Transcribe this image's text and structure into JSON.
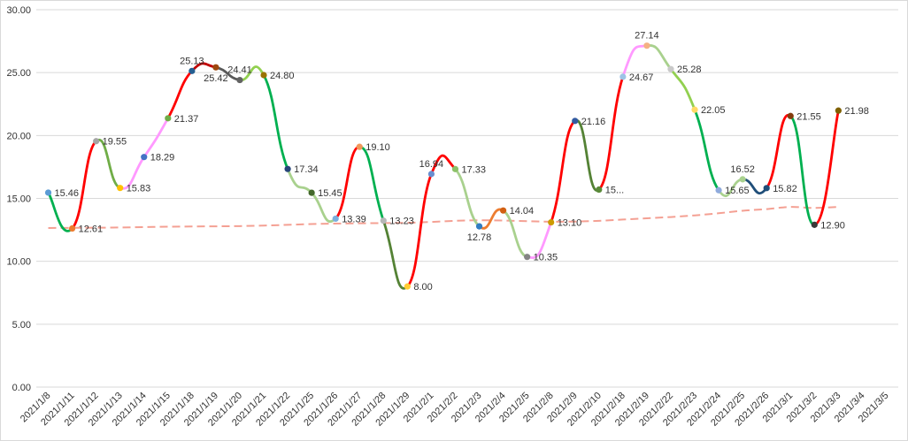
{
  "chart_data": {
    "type": "line",
    "smooth": true,
    "title": "",
    "xlabel": "",
    "ylabel": "",
    "ylim": [
      0,
      30
    ],
    "yticks": [
      "0.00",
      "5.00",
      "10.00",
      "15.00",
      "20.00",
      "25.00",
      "30.00"
    ],
    "grid": "horizontal",
    "legend": "none",
    "categories": [
      "2021/1/8",
      "2021/1/11",
      "2021/1/12",
      "2021/1/13",
      "2021/1/14",
      "2021/1/15",
      "2021/1/18",
      "2021/1/19",
      "2021/1/20",
      "2021/1/21",
      "2021/1/22",
      "2021/1/25",
      "2021/1/26",
      "2021/1/27",
      "2021/1/28",
      "2021/1/29",
      "2021/2/1",
      "2021/2/2",
      "2021/2/3",
      "2021/2/4",
      "2021/2/5",
      "2021/2/8",
      "2021/2/9",
      "2021/2/10",
      "2021/2/18",
      "2021/2/19",
      "2021/2/22",
      "2021/2/23",
      "2021/2/24",
      "2021/2/25",
      "2021/2/26",
      "2021/3/1",
      "2021/3/2",
      "2021/3/3",
      "2021/3/4",
      "2021/3/5"
    ],
    "series": [
      {
        "values": [
          15.46,
          12.61,
          19.55,
          15.83,
          18.29,
          21.37,
          25.13,
          25.42,
          24.41,
          24.8,
          17.34,
          15.45,
          13.39,
          19.1,
          13.23,
          8.0,
          16.94,
          17.33,
          12.78,
          14.04,
          10.35,
          13.1,
          21.16,
          15.7,
          24.67,
          27.14,
          25.28,
          22.05,
          15.65,
          16.52,
          15.82,
          21.55,
          12.9,
          21.98,
          null,
          null
        ],
        "data_labels": [
          "15.46",
          "12.61",
          "19.55",
          "15.83",
          "18.29",
          "21.37",
          "25.13",
          "25.42",
          "24.41",
          "24.80",
          "17.34",
          "15.45",
          "13.39",
          "19.10",
          "13.23",
          "8.00",
          "16.94",
          "17.33",
          "12.78",
          "14.04",
          "10.35",
          "13.10",
          "21.16",
          "15...",
          "24.67",
          "27.14",
          "25.28",
          "22.05",
          "15.65",
          "16.52",
          "15.82",
          "21.55",
          "12.90",
          "21.98",
          "",
          ""
        ],
        "label_dir": [
          "r",
          "r",
          "r",
          "r",
          "r",
          "r",
          "a",
          "b",
          "a",
          "r",
          "r",
          "r",
          "r",
          "r",
          "r",
          "r",
          "a",
          "r",
          "b",
          "r",
          "r",
          "r",
          "r",
          "r",
          "r",
          "a",
          "r",
          "r",
          "r",
          "a",
          "r",
          "r",
          "r",
          "r",
          "r",
          "r"
        ],
        "point_colors": [
          "#5b9bd5",
          "#ed7d31",
          "#a5a5a5",
          "#ffc000",
          "#4472c4",
          "#70ad47",
          "#255e91",
          "#9e480e",
          "#636363",
          "#997300",
          "#264478",
          "#43682b",
          "#7cafdd",
          "#f1975a",
          "#b7b7b7",
          "#ffcd33",
          "#698ed0",
          "#8cc168",
          "#327dc2",
          "#d26012",
          "#848484",
          "#cc9a00",
          "#335aa1",
          "#5a8a39",
          "#9dc3e6",
          "#f4b183",
          "#c9c9c9",
          "#ffd966",
          "#8faadc",
          "#a9d18e",
          "#1f4e79",
          "#843c0c",
          "#3a3a3a",
          "#7f6000",
          "",
          ""
        ],
        "segment_colors": [
          "#00b050",
          "#ff0000",
          "#70ad47",
          "#ff99ff",
          "#ff99ff",
          "#ff0000",
          "#c00000",
          "#595959",
          "#92d050",
          "#00b050",
          "#a9d18e",
          "#a9d18e",
          "#ff0000",
          "#00b050",
          "#548235",
          "#ff0000",
          "#ff0000",
          "#a9d18e",
          "#ed7d31",
          "#a9d18e",
          "#ff99ff",
          "#ff0000",
          "#548235",
          "#ff0000",
          "#ff99ff",
          "#a9d18e",
          "#92d050",
          "#00b050",
          "#a9d18e",
          "#1f4e79",
          "#ff0000",
          "#00b050",
          "#ff0000"
        ]
      },
      {
        "style": "dashed",
        "color": "#f4a093",
        "values": [
          12.65,
          12.66,
          12.67,
          12.69,
          12.72,
          12.75,
          12.77,
          12.78,
          12.8,
          12.84,
          12.9,
          12.96,
          13.0,
          13.02,
          13.04,
          13.06,
          13.13,
          13.22,
          13.26,
          13.24,
          13.19,
          13.15,
          13.16,
          13.22,
          13.32,
          13.42,
          13.52,
          13.65,
          13.82,
          14.02,
          14.15,
          14.32,
          14.24,
          14.32,
          null,
          null
        ]
      }
    ]
  }
}
